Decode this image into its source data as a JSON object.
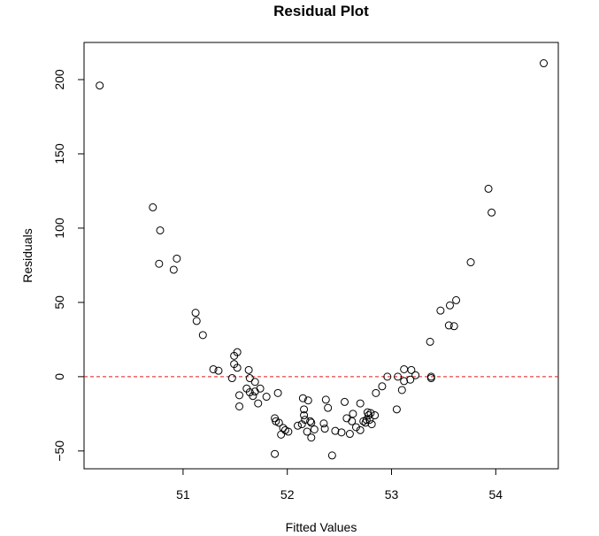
{
  "chart_data": {
    "type": "scatter",
    "title": "Residual Plot",
    "xlabel": "Fitted Values",
    "ylabel": "Residuals",
    "xlim": [
      50.05,
      54.6
    ],
    "ylim": [
      -62,
      225
    ],
    "xticks": [
      51,
      52,
      53,
      54
    ],
    "yticks": [
      -50,
      0,
      50,
      100,
      150,
      200
    ],
    "xtick_labels": [
      "51",
      "52",
      "53",
      "54"
    ],
    "ytick_labels": [
      "−50",
      "0",
      "50",
      "100",
      "150",
      "200"
    ],
    "reference_line": {
      "y": 0,
      "style": "dashed",
      "color": "#e41a1c"
    },
    "grid": false,
    "legend": "none",
    "points": [
      [
        50.2,
        196
      ],
      [
        54.46,
        211
      ],
      [
        50.71,
        114
      ],
      [
        50.78,
        98.5
      ],
      [
        50.77,
        76
      ],
      [
        50.91,
        72
      ],
      [
        50.94,
        79.5
      ],
      [
        51.12,
        43
      ],
      [
        51.13,
        37.5
      ],
      [
        51.19,
        28
      ],
      [
        51.29,
        5
      ],
      [
        51.34,
        4
      ],
      [
        51.47,
        -1
      ],
      [
        51.49,
        14
      ],
      [
        51.49,
        8.5
      ],
      [
        51.52,
        16.5
      ],
      [
        51.52,
        6
      ],
      [
        51.54,
        -12.5
      ],
      [
        51.54,
        -20
      ],
      [
        51.61,
        -8
      ],
      [
        51.63,
        4.5
      ],
      [
        51.64,
        -1
      ],
      [
        51.64,
        -10.5
      ],
      [
        51.67,
        -13
      ],
      [
        51.69,
        -3.5
      ],
      [
        51.69,
        -10
      ],
      [
        51.72,
        -18
      ],
      [
        51.74,
        -8
      ],
      [
        51.8,
        -13.5
      ],
      [
        51.88,
        -52
      ],
      [
        51.88,
        -28
      ],
      [
        51.89,
        -30
      ],
      [
        51.91,
        -11
      ],
      [
        51.92,
        -31
      ],
      [
        51.94,
        -39
      ],
      [
        51.96,
        -34.5
      ],
      [
        51.98,
        -36
      ],
      [
        52.01,
        -37
      ],
      [
        52.1,
        -33
      ],
      [
        52.14,
        -32
      ],
      [
        52.15,
        -14.5
      ],
      [
        52.16,
        -26
      ],
      [
        52.16,
        -22
      ],
      [
        52.17,
        -29
      ],
      [
        52.19,
        -37
      ],
      [
        52.2,
        -16
      ],
      [
        52.22,
        -30
      ],
      [
        52.23,
        -31
      ],
      [
        52.23,
        -41
      ],
      [
        52.26,
        -35.5
      ],
      [
        52.35,
        -31.5
      ],
      [
        52.36,
        -35
      ],
      [
        52.37,
        -15.5
      ],
      [
        52.39,
        -21
      ],
      [
        52.43,
        -53
      ],
      [
        52.46,
        -36.5
      ],
      [
        52.52,
        -37.5
      ],
      [
        52.55,
        -17
      ],
      [
        52.57,
        -28
      ],
      [
        52.6,
        -38.5
      ],
      [
        52.62,
        -30
      ],
      [
        52.63,
        -25
      ],
      [
        52.66,
        -34
      ],
      [
        52.7,
        -36
      ],
      [
        52.7,
        -18
      ],
      [
        52.73,
        -30
      ],
      [
        52.75,
        -31
      ],
      [
        52.76,
        -29
      ],
      [
        52.77,
        -24
      ],
      [
        52.78,
        -26
      ],
      [
        52.79,
        -29
      ],
      [
        52.8,
        -24.5
      ],
      [
        52.81,
        -32
      ],
      [
        52.84,
        -26
      ],
      [
        52.85,
        -11
      ],
      [
        52.91,
        -6.5
      ],
      [
        52.96,
        0
      ],
      [
        53.05,
        -22
      ],
      [
        53.06,
        0
      ],
      [
        53.1,
        -9
      ],
      [
        53.12,
        5
      ],
      [
        53.12,
        -3
      ],
      [
        53.18,
        -2
      ],
      [
        53.19,
        4.5
      ],
      [
        53.23,
        1
      ],
      [
        53.37,
        23.5
      ],
      [
        53.38,
        0
      ],
      [
        53.38,
        -1
      ],
      [
        53.47,
        44.5
      ],
      [
        53.55,
        34.5
      ],
      [
        53.56,
        48
      ],
      [
        53.62,
        51.5
      ],
      [
        53.6,
        34
      ],
      [
        53.76,
        77
      ],
      [
        53.93,
        126.5
      ],
      [
        53.96,
        110.5
      ]
    ]
  }
}
